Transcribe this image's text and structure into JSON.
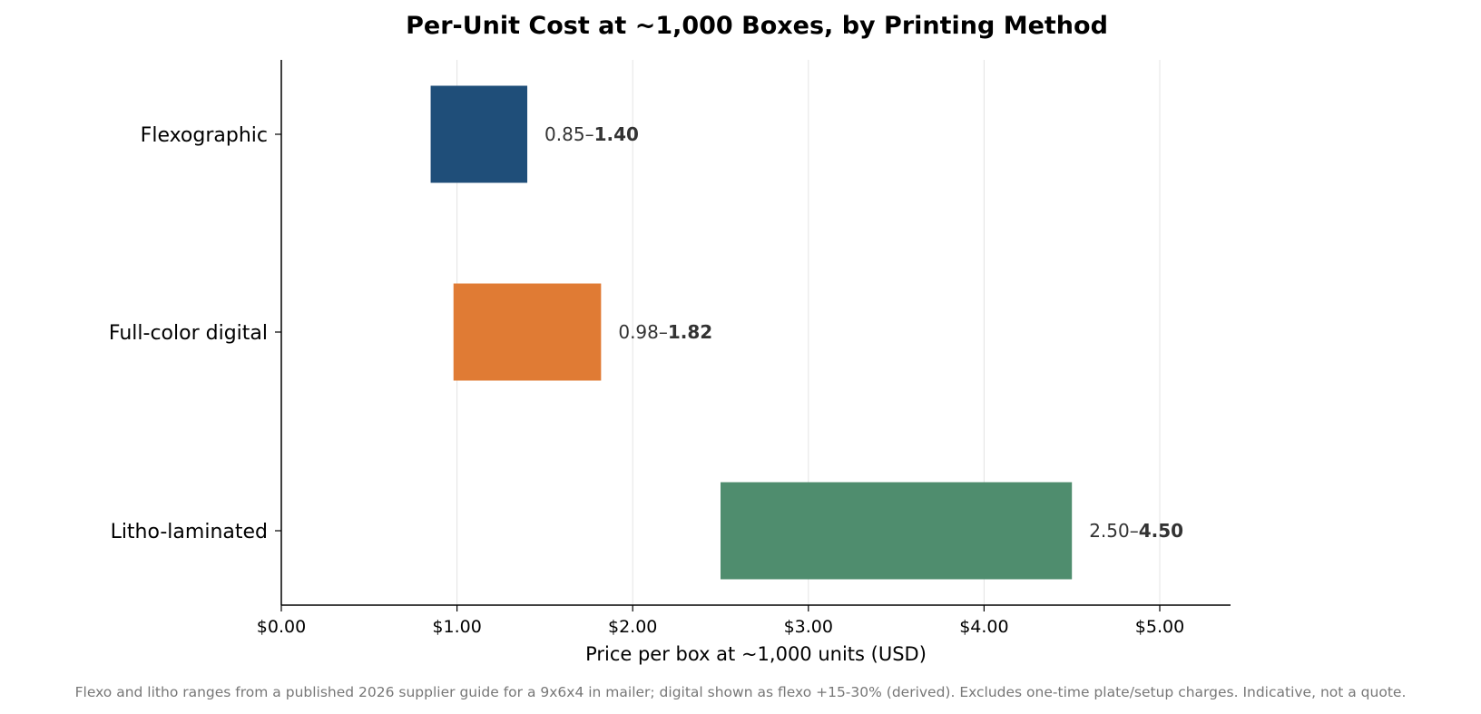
{
  "chart_data": {
    "type": "bar",
    "orientation": "horizontal-range",
    "title": "Per-Unit Cost at ~1,000 Boxes, by Printing Method",
    "xlabel": "Price per box at ~1,000 units (USD)",
    "ylabel": "",
    "xlim": [
      0,
      5.4
    ],
    "x_ticks": [
      0,
      1,
      2,
      3,
      4,
      5
    ],
    "x_tick_labels": [
      "$0.00",
      "$1.00",
      "$2.00",
      "$3.00",
      "$4.00",
      "$5.00"
    ],
    "grid": "vertical",
    "categories": [
      "Flexographic",
      "Full-color digital",
      "Litho-laminated"
    ],
    "ranges": [
      {
        "category": "Flexographic",
        "low": 0.85,
        "high": 1.4,
        "low_label": "0.85–",
        "high_label": "1.40",
        "color": "#1f4e79"
      },
      {
        "category": "Full-color digital",
        "low": 0.98,
        "high": 1.82,
        "low_label": "0.98–",
        "high_label": "1.82",
        "color": "#e07b34"
      },
      {
        "category": "Litho-laminated",
        "low": 2.5,
        "high": 4.5,
        "low_label": "2.50–",
        "high_label": "4.50",
        "color": "#4f8d6e"
      }
    ],
    "footnote": "Flexo and litho ranges from a published 2026 supplier guide for a 9x6x4 in mailer; digital shown as flexo +15-30% (derived). Excludes one-time plate/setup charges. Indicative, not a quote."
  }
}
